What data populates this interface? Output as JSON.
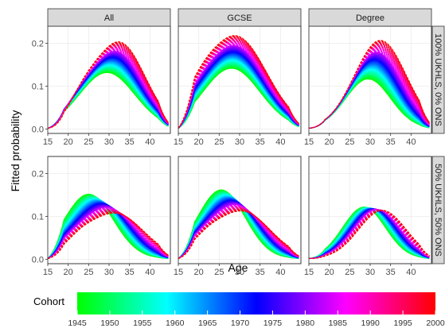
{
  "chart_data": {
    "type": "line",
    "ylabel": "Fitted probability",
    "xlabel": "Age",
    "xlim": [
      15,
      45
    ],
    "ylim": [
      -0.01,
      0.24
    ],
    "x_ticks": [
      15,
      20,
      25,
      30,
      35,
      40
    ],
    "y_ticks": [
      0.0,
      0.1,
      0.2
    ],
    "y_tick_labels": [
      "0.0",
      "0.1",
      "0.2"
    ],
    "columns": [
      "All",
      "GCSE",
      "Degree"
    ],
    "rows": [
      "100% UKHLS, 0% ONS",
      "50% UKHLS, 50% ONS"
    ],
    "legend": {
      "title": "Cohort",
      "range": [
        1945,
        2000
      ],
      "ticks": [
        1945,
        1950,
        1955,
        1960,
        1965,
        1970,
        1975,
        1980,
        1985,
        1990,
        1995,
        2000
      ],
      "gradient_colors": [
        "#00ff00",
        "#00ffff",
        "#0000ff",
        "#ff00ff",
        "#ff0000"
      ],
      "placement": "bottom"
    },
    "cohort_range": [
      1945,
      2000
    ],
    "cohort_step": 1,
    "panels": [
      {
        "row": 0,
        "col": 0,
        "early": {
          "peak_age": 29.5,
          "peak": 0.13,
          "width": 6.8,
          "shoulder": 0.0
        },
        "late": {
          "peak_age": 32.5,
          "peak": 0.2,
          "width": 6.3,
          "shoulder": 0.04
        }
      },
      {
        "row": 0,
        "col": 1,
        "early": {
          "peak_age": 28.0,
          "peak": 0.14,
          "width": 7.0,
          "shoulder": 0.0
        },
        "late": {
          "peak_age": 29.0,
          "peak": 0.215,
          "width": 7.6,
          "shoulder": 0.03
        }
      },
      {
        "row": 0,
        "col": 2,
        "early": {
          "peak_age": 29.5,
          "peak": 0.115,
          "width": 5.5,
          "shoulder": 0.0
        },
        "late": {
          "peak_age": 32.5,
          "peak": 0.205,
          "width": 6.3,
          "shoulder": 0.0
        }
      },
      {
        "row": 1,
        "col": 0,
        "early": {
          "peak_age": 25.0,
          "peak": 0.15,
          "width": 6.0,
          "shoulder": 0.0
        },
        "late": {
          "peak_age": 31.5,
          "peak": 0.105,
          "width": 7.0,
          "shoulder": 0.02
        }
      },
      {
        "row": 1,
        "col": 1,
        "early": {
          "peak_age": 25.5,
          "peak": 0.16,
          "width": 5.8,
          "shoulder": 0.0
        },
        "late": {
          "peak_age": 30.5,
          "peak": 0.11,
          "width": 7.0,
          "shoulder": 0.02
        }
      },
      {
        "row": 1,
        "col": 2,
        "early": {
          "peak_age": 28.5,
          "peak": 0.12,
          "width": 5.2,
          "shoulder": 0.0
        },
        "late": {
          "peak_age": 33.0,
          "peak": 0.112,
          "width": 5.8,
          "shoulder": 0.0
        }
      }
    ]
  }
}
